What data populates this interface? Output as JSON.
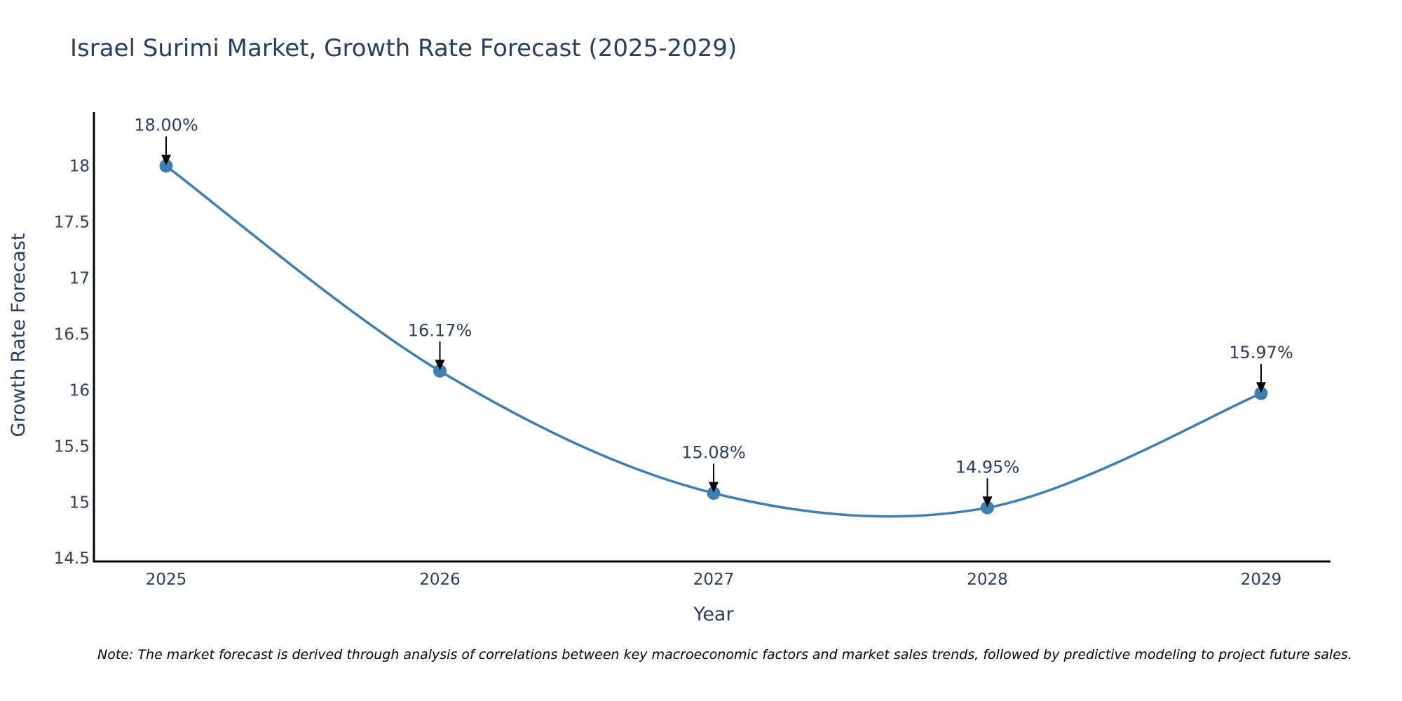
{
  "chart_data": {
    "type": "line",
    "title": "Israel Surimi Market, Growth Rate Forecast (2025-2029)",
    "xlabel": "Year",
    "ylabel": "Growth Rate Forecast",
    "categories": [
      "2025",
      "2026",
      "2027",
      "2028",
      "2029"
    ],
    "values": [
      18.0,
      16.17,
      15.08,
      14.95,
      15.97
    ],
    "data_labels": [
      "18.00%",
      "16.17%",
      "15.08%",
      "14.95%",
      "15.97%"
    ],
    "yticks": [
      14.5,
      15,
      15.5,
      16,
      16.5,
      17,
      17.5,
      18
    ],
    "ytick_labels": [
      "14.5",
      "15",
      "15.5",
      "16",
      "16.5",
      "17",
      "17.5",
      "18"
    ],
    "ylim": [
      14.47,
      18.48
    ],
    "grid": false,
    "line_shape": "spline",
    "line_color": "#3f7fb0",
    "marker_color": "#3f7fb0",
    "note": "Note: The market forecast is derived through analysis of correlations between key macroeconomic factors and market sales trends, followed by predictive modeling to project future sales."
  }
}
